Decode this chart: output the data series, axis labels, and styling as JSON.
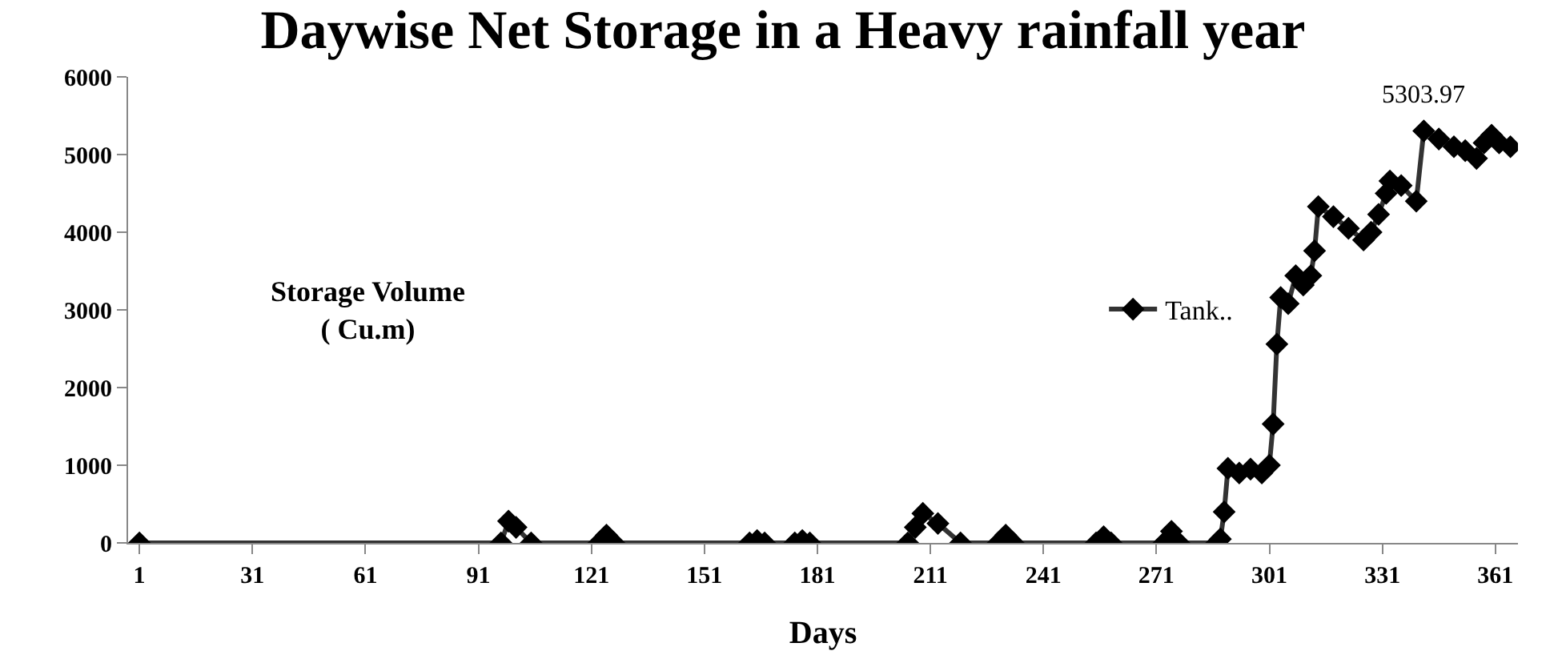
{
  "chart_data": {
    "type": "line",
    "title": "Daywise Net Storage in a Heavy rainfall year",
    "xlabel": "Days",
    "ylabel": "Storage Volume\n( Cu.m)",
    "series": [
      {
        "name": "Tank..",
        "color": "#333333",
        "x": [
          1,
          97,
          99,
          101,
          105,
          123,
          125,
          127,
          163,
          165,
          167,
          175,
          177,
          179,
          205,
          207,
          209,
          213,
          219,
          229,
          231,
          233,
          255,
          257,
          259,
          273,
          275,
          277,
          287,
          288,
          289,
          290,
          293,
          296,
          299,
          301,
          302,
          303,
          304,
          306,
          308,
          310,
          312,
          313,
          314,
          318,
          322,
          326,
          328,
          330,
          332,
          333,
          336,
          340,
          342,
          346,
          350,
          353,
          356,
          358,
          360,
          362,
          365
        ],
        "values": [
          0,
          0,
          280,
          200,
          0,
          0,
          100,
          0,
          0,
          30,
          0,
          0,
          30,
          0,
          0,
          200,
          380,
          250,
          0,
          0,
          100,
          0,
          0,
          80,
          0,
          0,
          150,
          0,
          0,
          50,
          400,
          960,
          900,
          950,
          900,
          1000,
          1530,
          2560,
          3160,
          3080,
          3440,
          3320,
          3440,
          3760,
          4330,
          4200,
          4050,
          3900,
          4000,
          4230,
          4500,
          4660,
          4600,
          4400,
          5303.97,
          5200,
          5100,
          5050,
          4950,
          5150,
          5250,
          5150,
          5100
        ]
      }
    ],
    "annotations": [
      {
        "text": "5303.97",
        "x": 342,
        "y": 5303.97
      }
    ],
    "xlim": [
      -2,
      367
    ],
    "xticks": [
      1,
      31,
      61,
      91,
      121,
      151,
      181,
      211,
      241,
      271,
      301,
      331,
      361
    ],
    "ylim": [
      0,
      6000
    ],
    "yticks": [
      0,
      1000,
      2000,
      3000,
      4000,
      5000,
      6000
    ],
    "marker": "diamond",
    "line_style": "solid",
    "legend": "right"
  }
}
